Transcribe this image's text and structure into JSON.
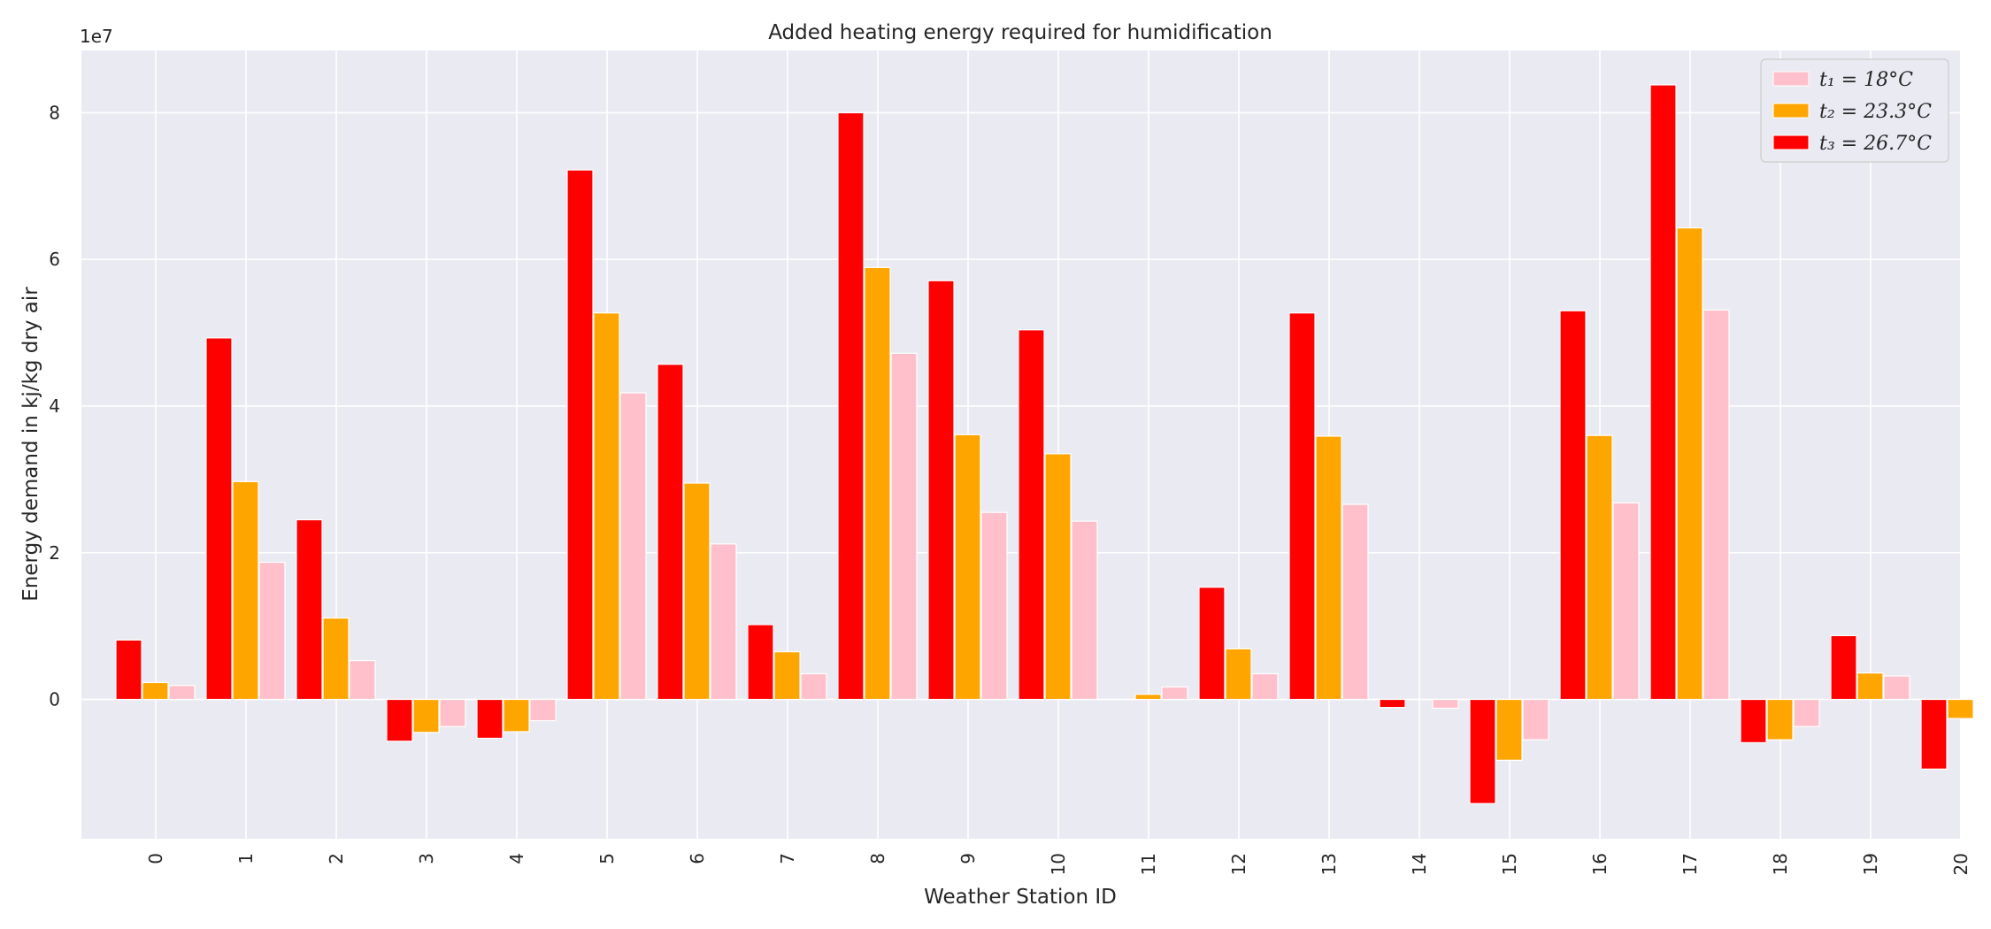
{
  "chart_data": {
    "type": "bar",
    "title": "Added heating energy required for humidification",
    "xlabel": "Weather Station ID",
    "ylabel": "Energy demand in kj/kg dry air",
    "y_offset_label": "1e7",
    "y_multiplier": 10000000,
    "categories": [
      "0",
      "1",
      "2",
      "3",
      "4",
      "5",
      "6",
      "7",
      "8",
      "9",
      "10",
      "11",
      "12",
      "13",
      "14",
      "15",
      "16",
      "17",
      "18",
      "19",
      "20"
    ],
    "ylim": [
      -1.9,
      8.85
    ],
    "yticks": [
      0,
      2,
      4,
      6,
      8
    ],
    "grid": true,
    "legend_position": "top-right",
    "series": [
      {
        "name": "t₃ = 26.7°C",
        "color": "#ff0000",
        "values": [
          0.81,
          4.93,
          2.45,
          -0.57,
          -0.53,
          7.22,
          4.57,
          1.02,
          8.0,
          5.71,
          5.04,
          0.0,
          1.53,
          5.27,
          -0.11,
          -1.42,
          5.3,
          8.38,
          -0.59,
          0.87,
          -0.95
        ]
      },
      {
        "name": "t₂ = 23.3°C",
        "color": "#ffa500",
        "values": [
          0.23,
          2.97,
          1.11,
          -0.45,
          -0.44,
          5.27,
          2.95,
          0.65,
          5.89,
          3.61,
          3.35,
          0.07,
          0.69,
          3.59,
          0.0,
          -0.83,
          3.6,
          6.43,
          -0.55,
          0.36,
          -0.26
        ]
      },
      {
        "name": "t₁ = 18°C",
        "color": "#ffc0cb",
        "values": [
          0.19,
          1.87,
          0.53,
          -0.37,
          -0.29,
          4.18,
          2.12,
          0.35,
          4.72,
          2.55,
          2.43,
          0.17,
          0.35,
          2.66,
          -0.12,
          -0.55,
          2.68,
          5.31,
          -0.37,
          0.32,
          0.0
        ]
      }
    ],
    "legend": [
      {
        "label": "t₁ = 18°C",
        "color": "#ffc0cb"
      },
      {
        "label": "t₂ = 23.3°C",
        "color": "#ffa500"
      },
      {
        "label": "t₃ = 26.7°C",
        "color": "#ff0000"
      }
    ],
    "style": {
      "background": "#eaeaf2",
      "grid_color": "#ffffff"
    }
  }
}
